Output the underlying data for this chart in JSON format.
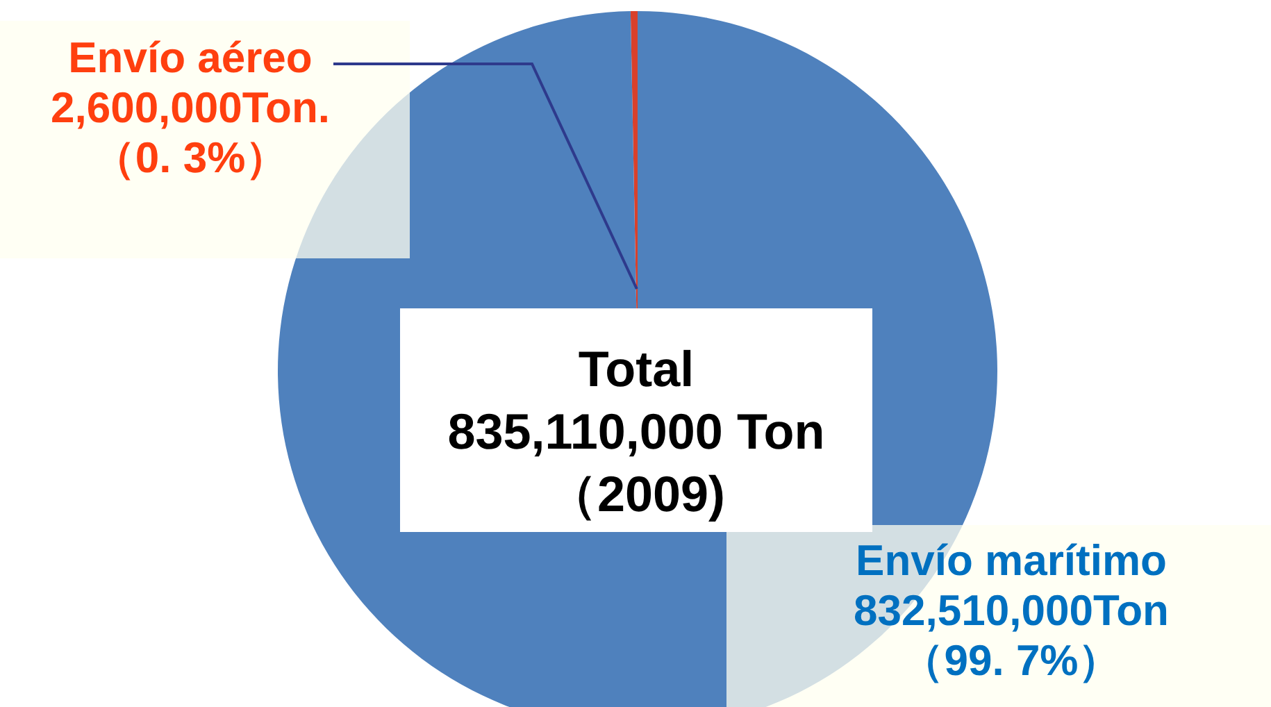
{
  "chart_data": {
    "type": "pie",
    "categories": [
      "Envío aéreo",
      "Envío marítimo"
    ],
    "values": [
      2600000,
      832510000
    ],
    "colors": [
      "#d9402b",
      "#4f81bd"
    ],
    "value_labels": [
      "2,600,000Ton.\n（0. 3%）",
      "832,510,000Ton\n（99. 7%）"
    ],
    "annotations": [
      "Total\n835,110,000 Ton\n（2009)"
    ]
  }
}
